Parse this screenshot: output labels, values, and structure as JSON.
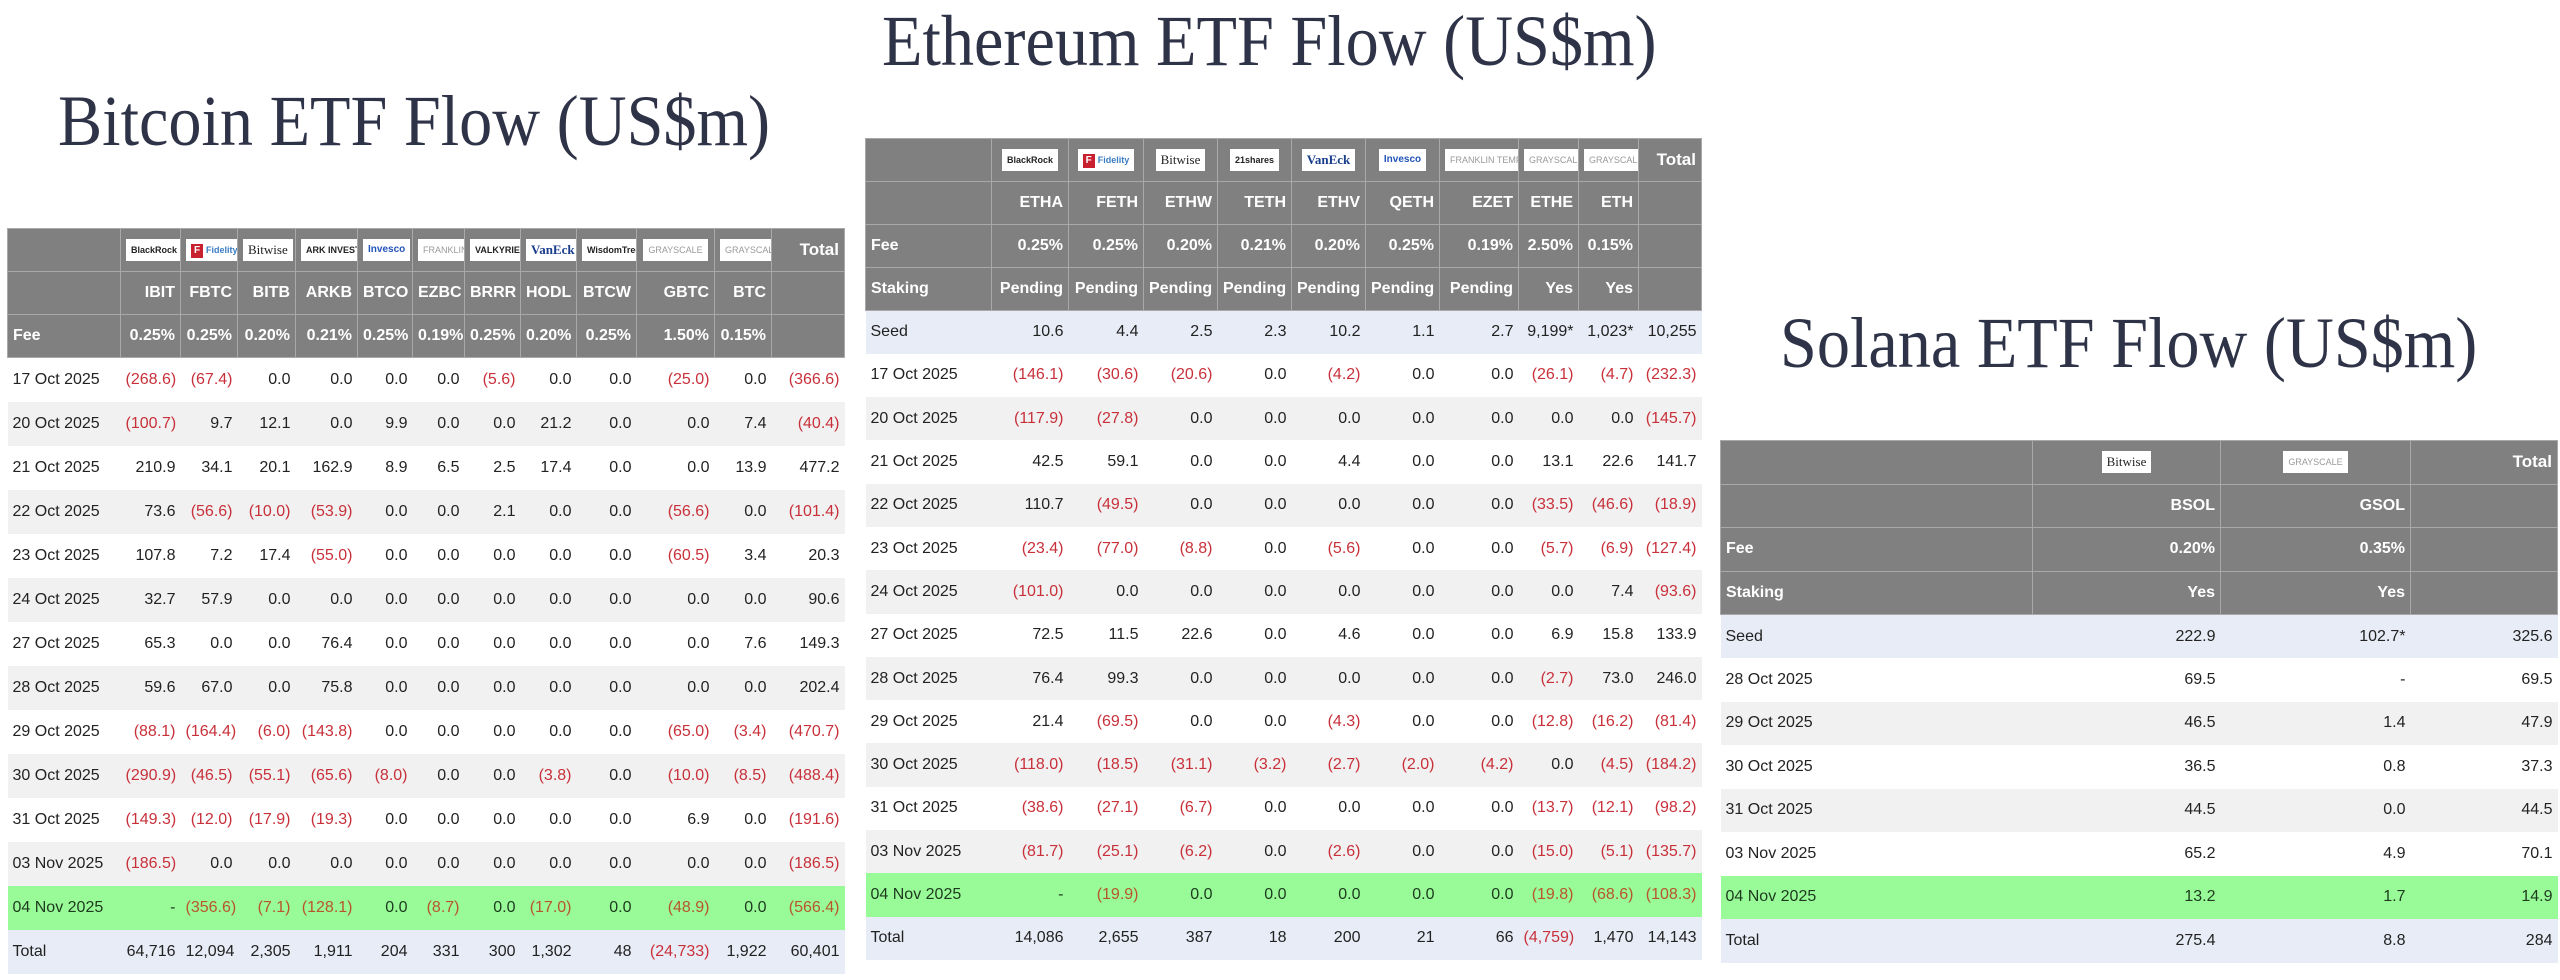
{
  "bitcoin": {
    "title": "Bitcoin ETF Flow (US$m)",
    "issuers": [
      "BlackRock",
      "Fidelity",
      "Bitwise",
      "ARK INVEST",
      "Invesco",
      "FRANKLIN TEMPLETON",
      "VALKYRIE",
      "VanEck",
      "WisdomTree",
      "GRAYSCALE",
      "GRAYSCALE"
    ],
    "tickers": [
      "IBIT",
      "FBTC",
      "BITB",
      "ARKB",
      "BTCO",
      "EZBC",
      "BRRR",
      "HODL",
      "BTCW",
      "GBTC",
      "BTC"
    ],
    "total_label": "Total",
    "fee_label": "Fee",
    "fees": [
      "0.25%",
      "0.25%",
      "0.20%",
      "0.21%",
      "0.25%",
      "0.19%",
      "0.25%",
      "0.20%",
      "0.25%",
      "1.50%",
      "0.15%"
    ],
    "rows": [
      {
        "date": "17 Oct 2025",
        "values": [
          "(268.6)",
          "(67.4)",
          "0.0",
          "0.0",
          "0.0",
          "0.0",
          "(5.6)",
          "0.0",
          "0.0",
          "(25.0)",
          "0.0",
          "(366.6)"
        ]
      },
      {
        "date": "20 Oct 2025",
        "values": [
          "(100.7)",
          "9.7",
          "12.1",
          "0.0",
          "9.9",
          "0.0",
          "0.0",
          "21.2",
          "0.0",
          "0.0",
          "7.4",
          "(40.4)"
        ]
      },
      {
        "date": "21 Oct 2025",
        "values": [
          "210.9",
          "34.1",
          "20.1",
          "162.9",
          "8.9",
          "6.5",
          "2.5",
          "17.4",
          "0.0",
          "0.0",
          "13.9",
          "477.2"
        ]
      },
      {
        "date": "22 Oct 2025",
        "values": [
          "73.6",
          "(56.6)",
          "(10.0)",
          "(53.9)",
          "0.0",
          "0.0",
          "2.1",
          "0.0",
          "0.0",
          "(56.6)",
          "0.0",
          "(101.4)"
        ]
      },
      {
        "date": "23 Oct 2025",
        "values": [
          "107.8",
          "7.2",
          "17.4",
          "(55.0)",
          "0.0",
          "0.0",
          "0.0",
          "0.0",
          "0.0",
          "(60.5)",
          "3.4",
          "20.3"
        ]
      },
      {
        "date": "24 Oct 2025",
        "values": [
          "32.7",
          "57.9",
          "0.0",
          "0.0",
          "0.0",
          "0.0",
          "0.0",
          "0.0",
          "0.0",
          "0.0",
          "0.0",
          "90.6"
        ]
      },
      {
        "date": "27 Oct 2025",
        "values": [
          "65.3",
          "0.0",
          "0.0",
          "76.4",
          "0.0",
          "0.0",
          "0.0",
          "0.0",
          "0.0",
          "0.0",
          "7.6",
          "149.3"
        ]
      },
      {
        "date": "28 Oct 2025",
        "values": [
          "59.6",
          "67.0",
          "0.0",
          "75.8",
          "0.0",
          "0.0",
          "0.0",
          "0.0",
          "0.0",
          "0.0",
          "0.0",
          "202.4"
        ]
      },
      {
        "date": "29 Oct 2025",
        "values": [
          "(88.1)",
          "(164.4)",
          "(6.0)",
          "(143.8)",
          "0.0",
          "0.0",
          "0.0",
          "0.0",
          "0.0",
          "(65.0)",
          "(3.4)",
          "(470.7)"
        ]
      },
      {
        "date": "30 Oct 2025",
        "values": [
          "(290.9)",
          "(46.5)",
          "(55.1)",
          "(65.6)",
          "(8.0)",
          "0.0",
          "0.0",
          "(3.8)",
          "0.0",
          "(10.0)",
          "(8.5)",
          "(488.4)"
        ]
      },
      {
        "date": "31 Oct 2025",
        "values": [
          "(149.3)",
          "(12.0)",
          "(17.9)",
          "(19.3)",
          "0.0",
          "0.0",
          "0.0",
          "0.0",
          "0.0",
          "6.9",
          "0.0",
          "(191.6)"
        ]
      },
      {
        "date": "03 Nov 2025",
        "values": [
          "(186.5)",
          "0.0",
          "0.0",
          "0.0",
          "0.0",
          "0.0",
          "0.0",
          "0.0",
          "0.0",
          "0.0",
          "0.0",
          "(186.5)"
        ]
      },
      {
        "date": "04 Nov 2025",
        "highlight": true,
        "values": [
          "-",
          "(356.6)",
          "(7.1)",
          "(128.1)",
          "0.0",
          "(8.7)",
          "0.0",
          "(17.0)",
          "0.0",
          "(48.9)",
          "0.0",
          "(566.4)"
        ]
      }
    ],
    "totals": {
      "label": "Total",
      "values": [
        "64,716",
        "12,094",
        "2,305",
        "1,911",
        "204",
        "331",
        "300",
        "1,302",
        "48",
        "(24,733)",
        "1,922",
        "60,401"
      ]
    }
  },
  "ethereum": {
    "title": "Ethereum ETF Flow (US$m)",
    "issuers": [
      "BlackRock",
      "Fidelity",
      "Bitwise",
      "21shares",
      "VanEck",
      "Invesco",
      "FRANKLIN TEMPLETON",
      "GRAYSCALE",
      "GRAYSCALE"
    ],
    "tickers": [
      "ETHA",
      "FETH",
      "ETHW",
      "TETH",
      "ETHV",
      "QETH",
      "EZET",
      "ETHE",
      "ETH"
    ],
    "total_label": "Total",
    "fee_label": "Fee",
    "fees": [
      "0.25%",
      "0.25%",
      "0.20%",
      "0.21%",
      "0.20%",
      "0.25%",
      "0.19%",
      "2.50%",
      "0.15%"
    ],
    "staking_label": "Staking",
    "staking": [
      "Pending",
      "Pending",
      "Pending",
      "Pending",
      "Pending",
      "Pending",
      "Pending",
      "Yes",
      "Yes"
    ],
    "seed": {
      "label": "Seed",
      "values": [
        "10.6",
        "4.4",
        "2.5",
        "2.3",
        "10.2",
        "1.1",
        "2.7",
        "9,199*",
        "1,023*",
        "10,255"
      ]
    },
    "rows": [
      {
        "date": "17 Oct 2025",
        "values": [
          "(146.1)",
          "(30.6)",
          "(20.6)",
          "0.0",
          "(4.2)",
          "0.0",
          "0.0",
          "(26.1)",
          "(4.7)",
          "(232.3)"
        ]
      },
      {
        "date": "20 Oct 2025",
        "values": [
          "(117.9)",
          "(27.8)",
          "0.0",
          "0.0",
          "0.0",
          "0.0",
          "0.0",
          "0.0",
          "0.0",
          "(145.7)"
        ]
      },
      {
        "date": "21 Oct 2025",
        "values": [
          "42.5",
          "59.1",
          "0.0",
          "0.0",
          "4.4",
          "0.0",
          "0.0",
          "13.1",
          "22.6",
          "141.7"
        ]
      },
      {
        "date": "22 Oct 2025",
        "values": [
          "110.7",
          "(49.5)",
          "0.0",
          "0.0",
          "0.0",
          "0.0",
          "0.0",
          "(33.5)",
          "(46.6)",
          "(18.9)"
        ]
      },
      {
        "date": "23 Oct 2025",
        "values": [
          "(23.4)",
          "(77.0)",
          "(8.8)",
          "0.0",
          "(5.6)",
          "0.0",
          "0.0",
          "(5.7)",
          "(6.9)",
          "(127.4)"
        ]
      },
      {
        "date": "24 Oct 2025",
        "values": [
          "(101.0)",
          "0.0",
          "0.0",
          "0.0",
          "0.0",
          "0.0",
          "0.0",
          "0.0",
          "7.4",
          "(93.6)"
        ]
      },
      {
        "date": "27 Oct 2025",
        "values": [
          "72.5",
          "11.5",
          "22.6",
          "0.0",
          "4.6",
          "0.0",
          "0.0",
          "6.9",
          "15.8",
          "133.9"
        ]
      },
      {
        "date": "28 Oct 2025",
        "values": [
          "76.4",
          "99.3",
          "0.0",
          "0.0",
          "0.0",
          "0.0",
          "0.0",
          "(2.7)",
          "73.0",
          "246.0"
        ]
      },
      {
        "date": "29 Oct 2025",
        "values": [
          "21.4",
          "(69.5)",
          "0.0",
          "0.0",
          "(4.3)",
          "0.0",
          "0.0",
          "(12.8)",
          "(16.2)",
          "(81.4)"
        ]
      },
      {
        "date": "30 Oct 2025",
        "values": [
          "(118.0)",
          "(18.5)",
          "(31.1)",
          "(3.2)",
          "(2.7)",
          "(2.0)",
          "(4.2)",
          "0.0",
          "(4.5)",
          "(184.2)"
        ]
      },
      {
        "date": "31 Oct 2025",
        "values": [
          "(38.6)",
          "(27.1)",
          "(6.7)",
          "0.0",
          "0.0",
          "0.0",
          "0.0",
          "(13.7)",
          "(12.1)",
          "(98.2)"
        ]
      },
      {
        "date": "03 Nov 2025",
        "values": [
          "(81.7)",
          "(25.1)",
          "(6.2)",
          "0.0",
          "(2.6)",
          "0.0",
          "0.0",
          "(15.0)",
          "(5.1)",
          "(135.7)"
        ]
      },
      {
        "date": "04 Nov 2025",
        "highlight": true,
        "values": [
          "-",
          "(19.9)",
          "0.0",
          "0.0",
          "0.0",
          "0.0",
          "0.0",
          "(19.8)",
          "(68.6)",
          "(108.3)"
        ]
      }
    ],
    "totals": {
      "label": "Total",
      "values": [
        "14,086",
        "2,655",
        "387",
        "18",
        "200",
        "21",
        "66",
        "(4,759)",
        "1,470",
        "14,143"
      ]
    }
  },
  "solana": {
    "title": "Solana ETF Flow (US$m)",
    "issuers": [
      "Bitwise",
      "GRAYSCALE"
    ],
    "tickers": [
      "BSOL",
      "GSOL"
    ],
    "total_label": "Total",
    "fee_label": "Fee",
    "fees": [
      "0.20%",
      "0.35%"
    ],
    "staking_label": "Staking",
    "staking": [
      "Yes",
      "Yes"
    ],
    "seed": {
      "label": "Seed",
      "values": [
        "222.9",
        "102.7*",
        "325.6"
      ]
    },
    "rows": [
      {
        "date": "28 Oct 2025",
        "values": [
          "69.5",
          "-",
          "69.5"
        ]
      },
      {
        "date": "29 Oct 2025",
        "values": [
          "46.5",
          "1.4",
          "47.9"
        ]
      },
      {
        "date": "30 Oct 2025",
        "values": [
          "36.5",
          "0.8",
          "37.3"
        ]
      },
      {
        "date": "31 Oct 2025",
        "values": [
          "44.5",
          "0.0",
          "44.5"
        ]
      },
      {
        "date": "03 Nov 2025",
        "values": [
          "65.2",
          "4.9",
          "70.1"
        ]
      },
      {
        "date": "04 Nov 2025",
        "highlight": true,
        "values": [
          "13.2",
          "1.7",
          "14.9"
        ]
      }
    ],
    "totals": {
      "label": "Total",
      "values": [
        "275.4",
        "8.8",
        "284"
      ]
    }
  },
  "colors": {
    "header_bg": "#808080",
    "negative": "#c8303a",
    "highlight_row": "#98fb98",
    "seed_total_row": "#e8ecf6",
    "title": "#2e3347"
  }
}
